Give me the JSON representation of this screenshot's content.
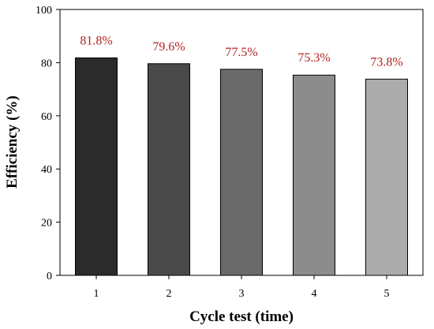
{
  "chart_data": {
    "type": "bar",
    "title": "",
    "xlabel": "Cycle test (time)",
    "ylabel": "Efficiency (%)",
    "categories": [
      "1",
      "2",
      "3",
      "4",
      "5"
    ],
    "values": [
      81.8,
      79.6,
      77.5,
      75.3,
      73.8
    ],
    "data_labels": [
      "81.8%",
      "79.6%",
      "77.5%",
      "75.3%",
      "73.8%"
    ],
    "ylim": [
      0,
      100
    ],
    "yticks": [
      0,
      20,
      40,
      60,
      80,
      100
    ],
    "grid": false,
    "legend": "none",
    "colors": {
      "bars": [
        "#2b2b2b",
        "#4a4a4a",
        "#6a6a6a",
        "#8c8c8c",
        "#acacac"
      ],
      "data_label": "#b22222",
      "axis": "#000000"
    }
  }
}
